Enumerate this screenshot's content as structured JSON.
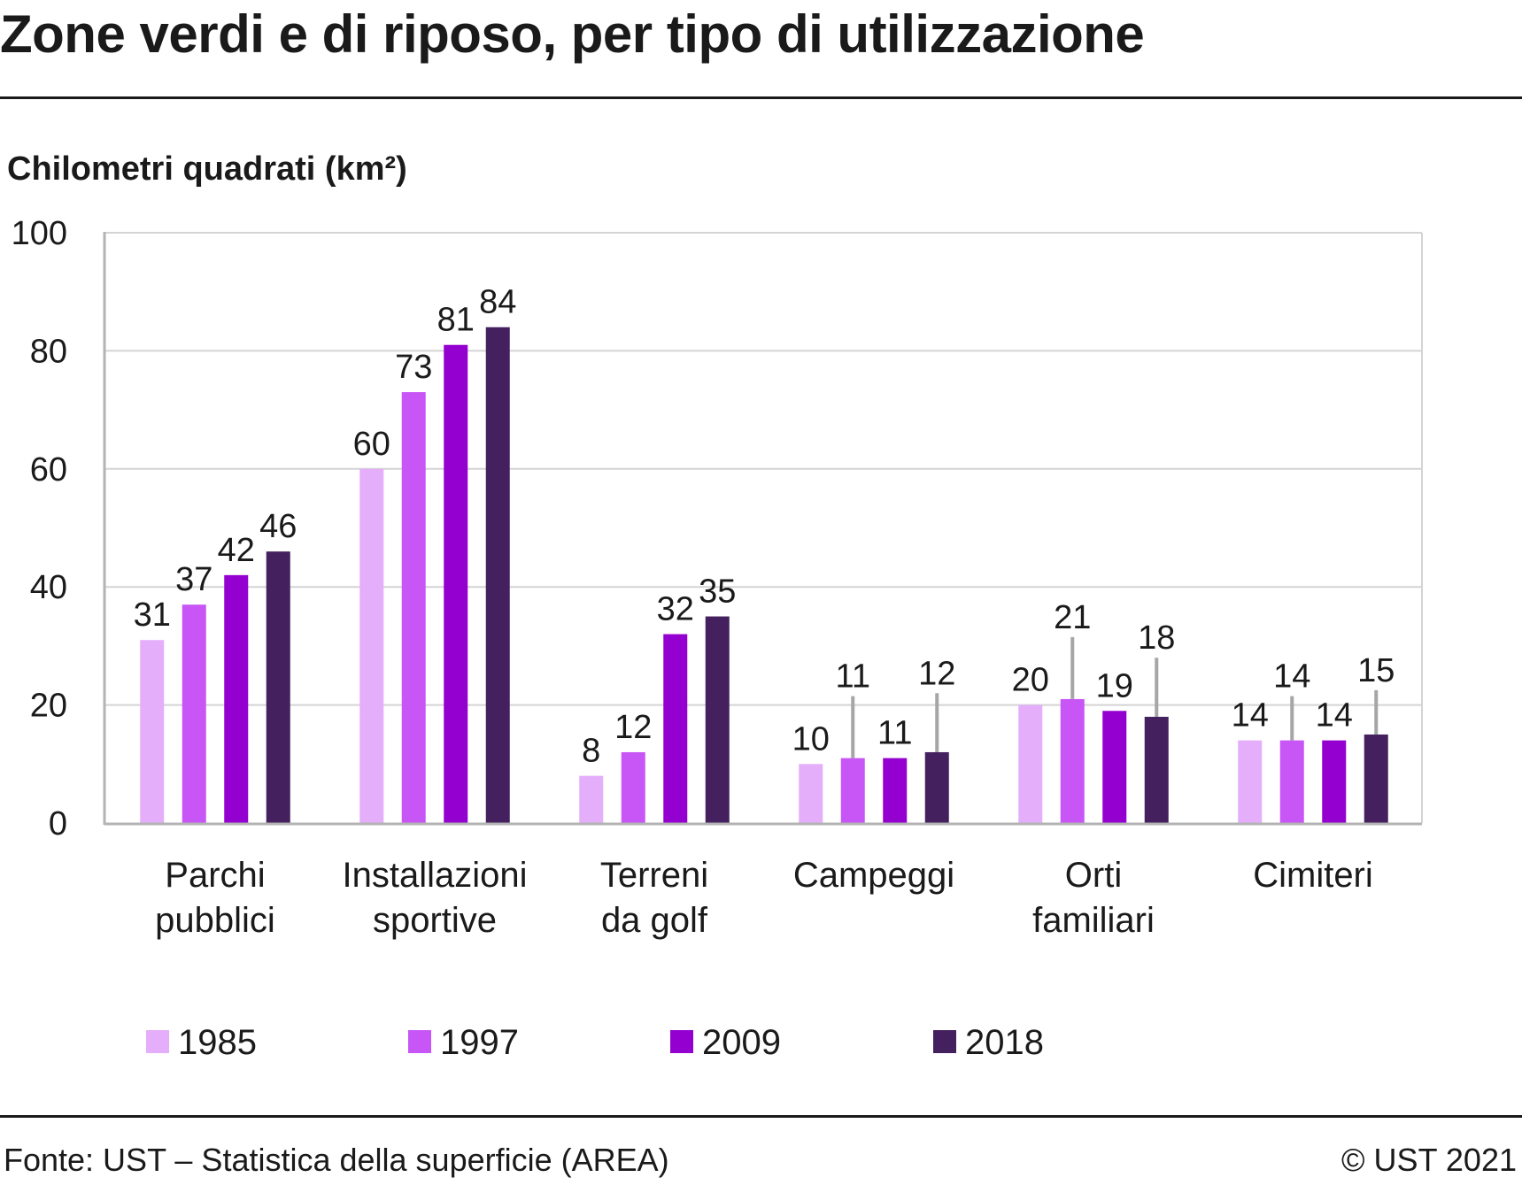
{
  "title": "Zone verdi e di riposo, per tipo di utilizzazione",
  "source": "Fonte: UST – Statistica della superficie (AREA)",
  "copyright": "© UST 2021",
  "colors": {
    "1985": "#e4aefa",
    "1997": "#c855f5",
    "2009": "#9400cf",
    "2018": "#44205f",
    "grid": "#d4d4d4",
    "axis": "#b3b3b3",
    "error_bar": "#a6a6a6"
  },
  "chart_data": {
    "type": "bar",
    "title": "",
    "ylabel": "Chilometri quadrati (km²)",
    "xlabel": "",
    "ylim": [
      0,
      100
    ],
    "yticks": [
      0,
      20,
      40,
      60,
      80,
      100
    ],
    "grid": true,
    "legend_position": "bottom",
    "categories": [
      [
        "Parchi",
        "pubblici"
      ],
      [
        "Installazioni",
        "sportive"
      ],
      [
        "Terreni",
        "da golf"
      ],
      [
        "Campeggi"
      ],
      [
        "Orti",
        "familiari"
      ],
      [
        "Cimiteri"
      ]
    ],
    "series": [
      {
        "name": "1985",
        "values": [
          31,
          60,
          8,
          10,
          20,
          14
        ],
        "error_margin": [
          null,
          null,
          null,
          null,
          null,
          null
        ]
      },
      {
        "name": "1997",
        "values": [
          37,
          73,
          12,
          11,
          21,
          14
        ],
        "error_margin": [
          null,
          null,
          null,
          10.5,
          10.5,
          7.5
        ]
      },
      {
        "name": "2009",
        "values": [
          42,
          81,
          32,
          11,
          19,
          14
        ],
        "error_margin": [
          null,
          null,
          null,
          null,
          null,
          null
        ]
      },
      {
        "name": "2018",
        "values": [
          46,
          84,
          35,
          12,
          18,
          15
        ],
        "error_margin": [
          null,
          null,
          null,
          10,
          10,
          7.5
        ]
      }
    ]
  }
}
